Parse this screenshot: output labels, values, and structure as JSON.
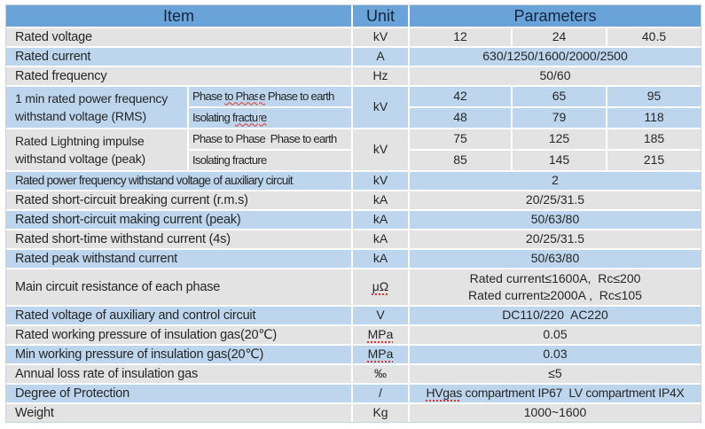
{
  "colors": {
    "header_bg": "#6aa3d8",
    "row_blue": "#bdd6ee",
    "row_gray": "#e3e3e3",
    "spellcheck_red": "#e0362c",
    "header_text": "#15253f"
  },
  "table": {
    "header": {
      "item": "Item",
      "unit": "Unit",
      "parameters": "Parameters"
    },
    "rated_voltage": {
      "label": "Rated voltage",
      "unit": "kV",
      "v1": "12",
      "v2": "24",
      "v3": "40.5"
    },
    "rated_current": {
      "label": "Rated current",
      "unit": "A",
      "value": "630/1250/1600/2000/2500"
    },
    "rated_frequency": {
      "label": "Rated frequency",
      "unit": "Hz",
      "value": "50/60"
    },
    "power_freq_withstand": {
      "label": "1 min rated power frequency withstand voltage (RMS)",
      "unit": "kV",
      "row1": {
        "parts": [
          "Phase ",
          "to Phase",
          " Phase to earth"
        ],
        "v1": "42",
        "v2": "65",
        "v3": "95"
      },
      "row2": {
        "parts": [
          "Isolating f",
          "racture",
          ""
        ],
        "v1": "48",
        "v2": "79",
        "v3": "118"
      }
    },
    "lightning_impulse_withstand": {
      "label": "Rated Lightning impulse withstand voltage (peak)",
      "unit": "kV",
      "row1": {
        "sub": "Phase to Phase  Phase to earth",
        "v1": "75",
        "v2": "125",
        "v3": "185"
      },
      "row2": {
        "sub": "Isolating fracture",
        "v1": "85",
        "v2": "145",
        "v3": "215"
      }
    },
    "aux_power_freq": {
      "label": "Rated power frequency withstand voltage of auxiliary circuit",
      "unit": "kV",
      "value": "2"
    },
    "breaking_current": {
      "label": "Rated short-circuit breaking current (r.m.s)",
      "unit": "kA",
      "value": "20/25/31.5"
    },
    "making_current": {
      "label": "Rated short-circuit making current (peak)",
      "unit": "kA",
      "value": "50/63/80"
    },
    "short_time_current": {
      "label": "Rated short-time withstand current (4s)",
      "unit": "kA",
      "value": "20/25/31.5"
    },
    "peak_current": {
      "label": "Rated peak withstand current",
      "unit": "kA",
      "value": "50/63/80"
    },
    "main_resistance": {
      "label": "Main circuit resistance of each phase",
      "unit": "μΩ",
      "line1": "Rated current≤1600A,  Rc≤200",
      "line2": "Rated current≥2000A ,  Rc≤105"
    },
    "aux_control_voltage": {
      "label": "Rated voltage of auxiliary and control circuit",
      "unit": "V",
      "value": "DC110/220  AC220"
    },
    "rated_gas_pressure": {
      "label": "Rated working pressure of insulation gas(20℃)",
      "unit": "MPa",
      "value": "0.05"
    },
    "min_gas_pressure": {
      "label": "Min working pressure of insulation gas(20℃)",
      "unit": "MPa",
      "value": "0.03"
    },
    "annual_loss": {
      "label": "Annual loss rate of insulation gas",
      "unit": "‰",
      "value": "≤5"
    },
    "protection": {
      "label": "Degree of Protection",
      "unit": "/",
      "parts": [
        "HVgas",
        " compartment IP67  LV compartment IP4X"
      ]
    },
    "weight": {
      "label": "Weight",
      "unit": "Kg",
      "value": "1000~1600"
    }
  }
}
